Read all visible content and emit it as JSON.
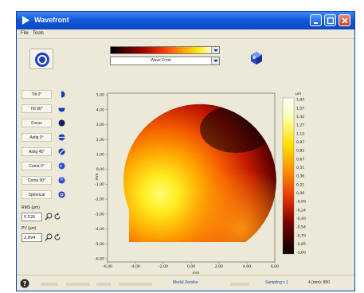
{
  "window": {
    "title": "Wavefront"
  },
  "menu": {
    "items": [
      "File",
      "Tools"
    ]
  },
  "left_panel": {
    "modes": [
      {
        "label": "Tilt 0°",
        "icon": "half-circle-icon"
      },
      {
        "label": "Tilt 90°",
        "icon": "half-circle-vertical-icon"
      },
      {
        "label": "Focus",
        "icon": "filled-circle-icon"
      },
      {
        "label": "Astig 0°",
        "icon": "astig-0-icon"
      },
      {
        "label": "Astig 45°",
        "icon": "astig-45-icon"
      },
      {
        "label": "Coma 0°",
        "icon": "coma-0-icon"
      },
      {
        "label": "Coma 90°",
        "icon": "coma-90-icon"
      },
      {
        "label": "Spherical",
        "icon": "ring-icon"
      }
    ],
    "rms_label": "RMS (µm)",
    "rms_value": "0,526",
    "pv_label": "PV (µm)",
    "pv_value": "2,894"
  },
  "toolbar": {
    "colormap_select": "",
    "display_select": "Wave Front"
  },
  "plot": {
    "x_ticks": [
      "-6,00",
      "-4,00",
      "-2,00",
      "0,00",
      "2,00",
      "4,00",
      "6,00"
    ],
    "y_ticks": [
      "5,00",
      "4,00",
      "3,00",
      "2,00",
      "1,00",
      "0,00",
      "-1,00",
      "-2,00",
      "-3,00",
      "-4,00",
      "-5,00",
      "-6,00"
    ],
    "x_label": "mm",
    "y_label": "mm"
  },
  "colorbar": {
    "unit": "µm",
    "ticks": [
      "1,83",
      "1,57",
      "1,42",
      "1,27",
      "1,13",
      "0,97",
      "0,82",
      "0,67",
      "0,51",
      "0,36",
      "0,21",
      "0,06",
      "-0,09",
      "-0,24",
      "-0,40",
      "-0,54",
      "-0,70",
      "-0,85",
      "-1,00"
    ]
  },
  "status": {
    "items": [
      "",
      "",
      "",
      "",
      "Modal Zernike",
      "",
      "Sampling x 1",
      "4 (mm): 850"
    ]
  },
  "colors": {
    "title_bar": "#1257d9",
    "accent_blue": "#1b3fb0",
    "window_bg": "#ece9d8"
  }
}
